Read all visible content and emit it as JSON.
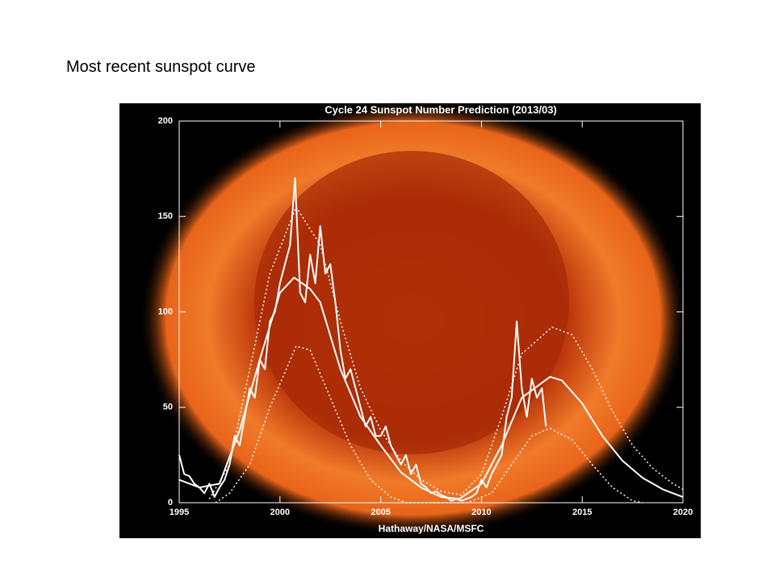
{
  "heading": "Most recent sunspot curve",
  "chart_data": {
    "type": "line",
    "title": "Cycle 24 Sunspot Number Prediction (2013/03)",
    "credit": "Hathaway/NASA/MSFC",
    "xlim": [
      1995,
      2020
    ],
    "xticks": [
      1995,
      2000,
      2005,
      2010,
      2015,
      2020
    ],
    "ylim": [
      0,
      200
    ],
    "yticks": [
      0,
      50,
      100,
      150,
      200
    ],
    "series": [
      {
        "color": "#ffffff",
        "dash": false,
        "width": 2,
        "x": [
          1995.0,
          1995.25,
          1995.5,
          1995.75,
          1996.0,
          1996.25,
          1996.5,
          1996.75,
          1997.0,
          1997.25,
          1997.5,
          1997.75,
          1998.0,
          1998.25,
          1998.5,
          1998.75,
          1999.0,
          1999.25,
          1999.5,
          1999.75,
          2000.0,
          2000.25,
          2000.5,
          2000.75,
          2001.0,
          2001.25,
          2001.5,
          2001.75,
          2002.0,
          2002.25,
          2002.5,
          2002.75,
          2003.0,
          2003.25,
          2003.5,
          2003.75,
          2004.0,
          2004.25,
          2004.5,
          2004.75,
          2005.0,
          2005.25,
          2005.5,
          2005.75,
          2006.0,
          2006.25,
          2006.5,
          2006.75,
          2007.0,
          2007.25,
          2007.5,
          2007.75,
          2008.0,
          2008.25,
          2008.5,
          2008.75,
          2009.0,
          2009.25,
          2009.5,
          2009.75,
          2010.0,
          2010.25,
          2010.5,
          2010.75,
          2011.0,
          2011.25,
          2011.5,
          2011.75,
          2012.0,
          2012.25,
          2012.5,
          2012.75,
          2013.0,
          2013.2
        ],
        "values": [
          25,
          15,
          14,
          10,
          8,
          5,
          10,
          3,
          8,
          12,
          20,
          35,
          30,
          45,
          60,
          55,
          75,
          70,
          95,
          100,
          115,
          125,
          135,
          170,
          110,
          105,
          130,
          115,
          145,
          120,
          125,
          105,
          80,
          65,
          70,
          60,
          50,
          40,
          45,
          35,
          35,
          40,
          30,
          25,
          20,
          25,
          15,
          20,
          10,
          8,
          5,
          6,
          4,
          3,
          1,
          2,
          1,
          2,
          3,
          5,
          12,
          8,
          15,
          20,
          25,
          45,
          55,
          95,
          60,
          45,
          65,
          55,
          60,
          40
        ]
      },
      {
        "color": "#ffffff",
        "dash": false,
        "width": 2,
        "x": [
          1995,
          1996,
          1997,
          1998,
          1999,
          2000,
          2000.7,
          2001.5,
          2002,
          2003,
          2004,
          2005,
          2006,
          2007,
          2008,
          2008.9,
          2010,
          2011,
          2012,
          2013.4,
          2014,
          2015,
          2016,
          2017,
          2018,
          2019,
          2020
        ],
        "values": [
          12,
          8,
          10,
          38,
          75,
          110,
          118,
          112,
          105,
          70,
          45,
          30,
          16,
          8,
          3,
          2,
          10,
          30,
          55,
          66,
          64,
          52,
          35,
          22,
          13,
          7,
          3
        ]
      },
      {
        "color": "#ffffff",
        "dash": true,
        "width": 1.5,
        "x": [
          1996.5,
          1997.5,
          1998.5,
          1999.5,
          2000.8,
          2002,
          2003,
          2004,
          2005,
          2006,
          2007,
          2008,
          2009,
          2010,
          2011,
          2012,
          2013.5,
          2014.5,
          2015.5,
          2016.5,
          2017.5,
          2018.5,
          2019.5,
          2020
        ],
        "values": [
          2,
          20,
          70,
          120,
          155,
          135,
          95,
          60,
          38,
          22,
          12,
          6,
          4,
          15,
          45,
          78,
          92,
          88,
          70,
          48,
          30,
          18,
          10,
          7
        ]
      },
      {
        "color": "#ffffff",
        "dash": true,
        "width": 1.5,
        "x": [
          1996.8,
          1997.5,
          1998.5,
          1999.5,
          2000.8,
          2001.5,
          2002.5,
          2003.5,
          2004.5,
          2005.5,
          2006.3,
          2009.3,
          2010.5,
          2011.5,
          2012.5,
          2013.4,
          2014.5,
          2015.5,
          2016.5,
          2017.5,
          2018
        ],
        "values": [
          0,
          5,
          20,
          50,
          82,
          80,
          55,
          30,
          12,
          3,
          0,
          0,
          5,
          20,
          35,
          39,
          33,
          20,
          8,
          1,
          0
        ]
      }
    ]
  }
}
